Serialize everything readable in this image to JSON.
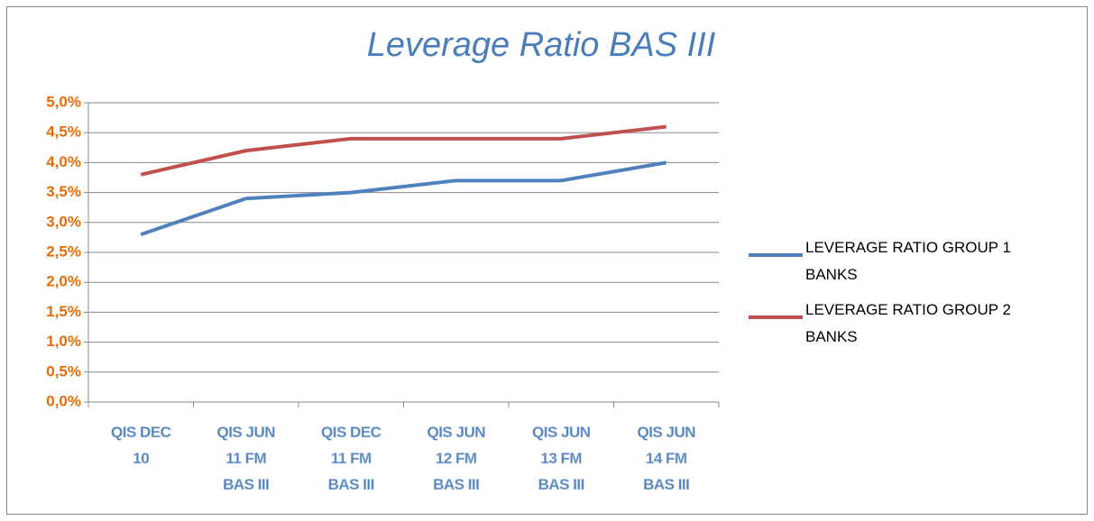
{
  "chart_data": {
    "type": "line",
    "title": "Leverage Ratio BAS III",
    "categories": [
      "QIS DEC 10",
      "QIS JUN 11 FM BAS III",
      "QIS DEC 11 FM BAS III",
      "QIS JUN 12 FM BAS III",
      "QIS JUN 13 FM BAS III",
      "QIS JUN 14 FM BAS III"
    ],
    "series": [
      {
        "name": "LEVERAGE RATIO GROUP 1 BANKS",
        "color": "#4f81bd",
        "values": [
          2.8,
          3.4,
          3.5,
          3.7,
          3.7,
          4.0
        ]
      },
      {
        "name": "LEVERAGE RATIO GROUP 2 BANKS",
        "color": "#c0504d",
        "values": [
          3.8,
          4.2,
          4.4,
          4.4,
          4.4,
          4.6
        ]
      }
    ],
    "ylim": [
      0,
      5
    ],
    "yticks": [
      {
        "value": 0,
        "label": "0,0%"
      },
      {
        "value": 0.5,
        "label": "0,5%"
      },
      {
        "value": 1,
        "label": "1,0%"
      },
      {
        "value": 1.5,
        "label": "1,5%"
      },
      {
        "value": 2,
        "label": "2,0%"
      },
      {
        "value": 2.5,
        "label": "2,5%"
      },
      {
        "value": 3,
        "label": "3,0%"
      },
      {
        "value": 3.5,
        "label": "3,5%"
      },
      {
        "value": 4,
        "label": "4,0%"
      },
      {
        "value": 4.5,
        "label": "4,5%"
      },
      {
        "value": 5,
        "label": "5,0%"
      }
    ],
    "grid": true,
    "legend": "right"
  }
}
